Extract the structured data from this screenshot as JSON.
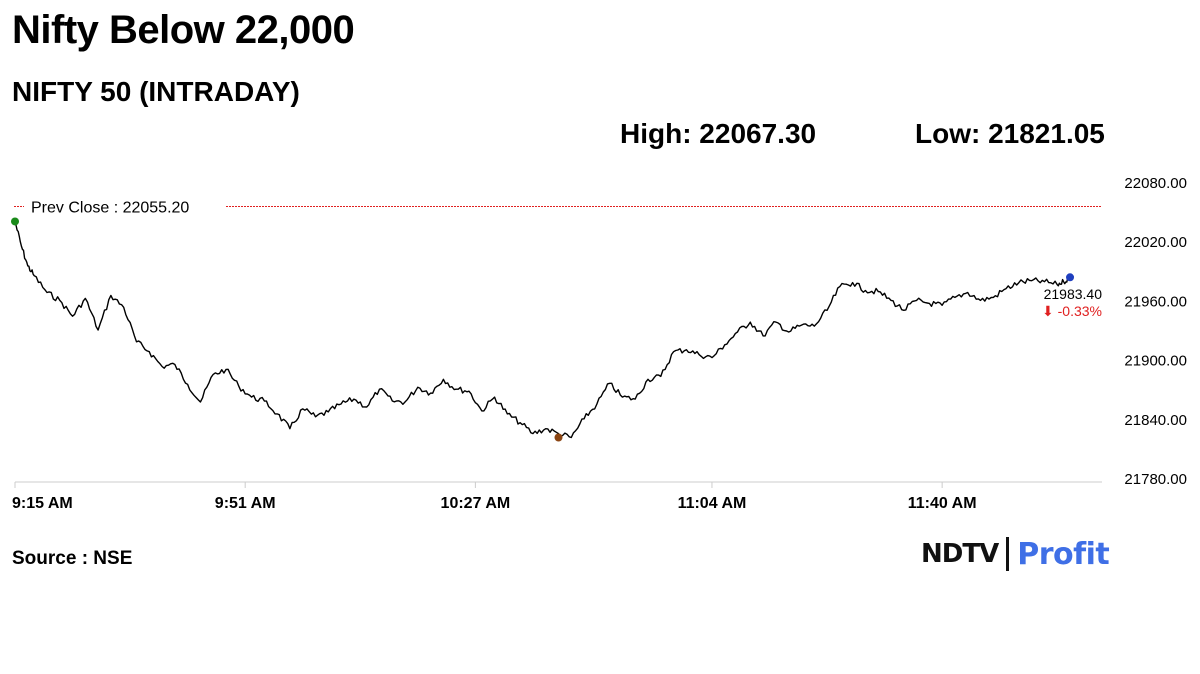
{
  "headline": "Nifty Below 22,000",
  "subtitle": "NIFTY 50 (INTRADAY)",
  "stats": {
    "high": "High: 22067.30",
    "low": "Low: 21821.05"
  },
  "source": "Source : NSE",
  "logo": {
    "brand": "NDTV",
    "product": "Profit"
  },
  "colors": {
    "line": "#000000",
    "prev_close": "#e02020",
    "start_dot": "#1a8a1a",
    "low_dot": "#8b4513",
    "end_dot": "#1f3fbf",
    "change": "#e02020",
    "axis": "#cccccc"
  },
  "chart_data": {
    "type": "line",
    "title": "",
    "xlabel": "",
    "ylabel": "",
    "ylim": [
      21780,
      22080
    ],
    "yticks": [
      "22080.00",
      "22020.00",
      "21960.00",
      "21900.00",
      "21840.00",
      "21780.00"
    ],
    "yticks_values": [
      22080,
      22020,
      21960,
      21900,
      21840,
      21780
    ],
    "xticks": [
      "9:15 AM",
      "9:51 AM",
      "10:27 AM",
      "11:04 AM",
      "11:40 AM"
    ],
    "prev_close": {
      "value": 22055.2,
      "label": "Prev Close : 22055.20"
    },
    "last": {
      "value": 21983.4,
      "label": "21983.40",
      "change_label": "⬇ -0.33%"
    },
    "series": [
      {
        "x": [
          "9:15",
          "9:16",
          "9:17",
          "9:18",
          "9:20",
          "9:22",
          "9:24",
          "9:26",
          "9:28",
          "9:30",
          "9:32",
          "9:34",
          "9:36",
          "9:38",
          "9:40",
          "9:42",
          "9:44",
          "9:46",
          "9:48",
          "9:50",
          "9:52",
          "9:54",
          "9:56",
          "9:58",
          "10:00",
          "10:02",
          "10:04",
          "10:06",
          "10:08",
          "10:10",
          "10:12",
          "10:14",
          "10:16",
          "10:18",
          "10:20",
          "10:22",
          "10:24",
          "10:26",
          "10:28",
          "10:30",
          "10:32",
          "10:34",
          "10:36",
          "10:38",
          "10:40",
          "10:42",
          "10:44",
          "10:46",
          "10:48",
          "10:50",
          "10:52",
          "10:54",
          "10:56",
          "10:58",
          "11:00",
          "11:02",
          "11:04",
          "11:06",
          "11:08",
          "11:10",
          "11:12",
          "11:14",
          "11:16",
          "11:18",
          "11:20",
          "11:22",
          "11:24",
          "11:26",
          "11:28",
          "11:30",
          "11:32",
          "11:34",
          "11:36",
          "11:38",
          "11:40",
          "11:42",
          "11:44",
          "11:46",
          "11:48",
          "11:50",
          "11:52",
          "11:54",
          "11:56",
          "11:58",
          "11:59",
          "12:00"
        ],
        "values": [
          22040,
          22015,
          21995,
          21985,
          21968,
          21960,
          21944,
          21962,
          21930,
          21965,
          21953,
          21918,
          21908,
          21893,
          21895,
          21875,
          21857,
          21885,
          21890,
          21873,
          21862,
          21858,
          21845,
          21830,
          21850,
          21842,
          21847,
          21855,
          21860,
          21852,
          21870,
          21858,
          21857,
          21872,
          21866,
          21880,
          21870,
          21868,
          21848,
          21862,
          21845,
          21836,
          21825,
          21830,
          21825,
          21821,
          21840,
          21855,
          21876,
          21862,
          21860,
          21880,
          21883,
          21908,
          21910,
          21905,
          21902,
          21915,
          21928,
          21938,
          21924,
          21938,
          21928,
          21935,
          21934,
          21950,
          21974,
          21978,
          21970,
          21969,
          21960,
          21950,
          21960,
          21957,
          21955,
          21963,
          21968,
          21960,
          21963,
          21972,
          21978,
          21980,
          21979,
          21976,
          21979,
          21983.4
        ]
      }
    ],
    "markers": [
      {
        "x": "9:15",
        "value": 22040,
        "kind": "start"
      },
      {
        "x": "10:40",
        "value": 21821.05,
        "kind": "low"
      },
      {
        "x": "12:00",
        "value": 21983.4,
        "kind": "last"
      }
    ]
  }
}
